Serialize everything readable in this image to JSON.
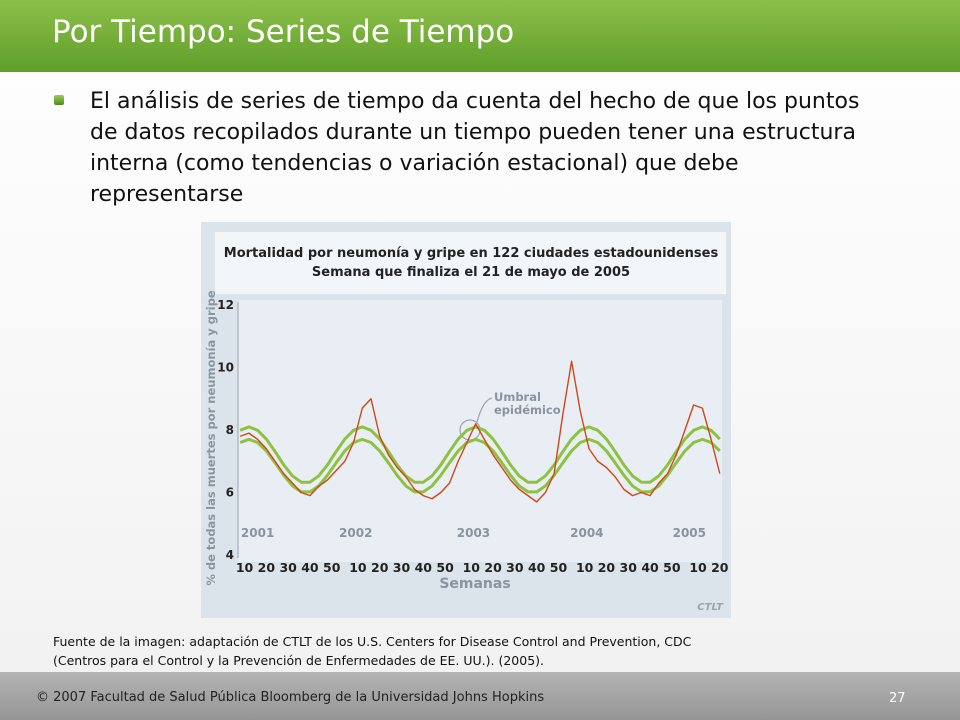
{
  "slide": {
    "title": "Por Tiempo: Series de Tiempo",
    "bullet": "El análisis de series de tiempo da cuenta del hecho de que los puntos de datos recopilados durante un tiempo pueden tener una estructura interna (como tendencias o variación estacional) que debe representarse",
    "source": [
      "Fuente de la imagen: adaptación de CTLT de los U.S. Centers for Disease Control and Prevention, CDC",
      "(Centros para el Control y la Prevención de Enfermedades de EE. UU.). (2005)."
    ],
    "footer": "© 2007 Facultad de Salud Pública Bloomberg de la Universidad Johns Hopkins",
    "page": "27"
  },
  "chart_data": {
    "type": "line",
    "title": "Mortalidad por neumonía y gripe en 122 ciudades estadounidenses",
    "subtitle": "Semana que finaliza el 21 de mayo de 2005",
    "y_label": "% de todas las muertes por neumonía y gripe",
    "x_label": "Semanas",
    "annotation": [
      "Umbral",
      "epidémico"
    ],
    "logo": "CTLT",
    "xlim": [
      7,
      229
    ],
    "ylim": [
      4,
      12
    ],
    "yticks": [
      4,
      6,
      8,
      10,
      12
    ],
    "xticks": [
      10,
      20,
      30,
      40,
      50,
      {
        "value": 62,
        "label": "10"
      },
      {
        "value": 72,
        "label": "20"
      },
      {
        "value": 82,
        "label": "30"
      },
      {
        "value": 92,
        "label": "40"
      },
      {
        "value": 102,
        "label": "50"
      },
      {
        "value": 114,
        "label": "10"
      },
      {
        "value": 124,
        "label": "20"
      },
      {
        "value": 134,
        "label": "30"
      },
      {
        "value": 144,
        "label": "40"
      },
      {
        "value": 154,
        "label": "50"
      },
      {
        "value": 166,
        "label": "10"
      },
      {
        "value": 176,
        "label": "20"
      },
      {
        "value": 186,
        "label": "30"
      },
      {
        "value": 196,
        "label": "40"
      },
      {
        "value": 206,
        "label": "50"
      },
      {
        "value": 218,
        "label": "10"
      },
      {
        "value": 228,
        "label": "20"
      }
    ],
    "year_labels": [
      {
        "value": 16,
        "label": "2001"
      },
      {
        "value": 61,
        "label": "2002"
      },
      {
        "value": 115,
        "label": "2003"
      },
      {
        "value": 167,
        "label": "2004"
      },
      {
        "value": 214,
        "label": "2005"
      }
    ],
    "grid": false,
    "x": [
      8,
      12,
      16,
      20,
      24,
      28,
      32,
      36,
      40,
      44,
      48,
      52,
      56,
      60,
      64,
      68,
      72,
      76,
      80,
      84,
      88,
      92,
      96,
      100,
      104,
      108,
      112,
      116,
      120,
      124,
      128,
      132,
      136,
      140,
      144,
      148,
      152,
      156,
      160,
      164,
      168,
      172,
      176,
      180,
      184,
      188,
      192,
      196,
      200,
      204,
      208,
      212,
      216,
      220,
      224,
      228
    ],
    "series": [
      {
        "color": "#8dc140",
        "width": 3,
        "values": [
          7.99,
          8.1,
          7.99,
          7.71,
          7.31,
          6.88,
          6.53,
          6.33,
          6.33,
          6.53,
          6.88,
          7.31,
          7.71,
          7.99,
          8.1,
          7.99,
          7.71,
          7.31,
          6.88,
          6.53,
          6.33,
          6.33,
          6.53,
          6.88,
          7.31,
          7.71,
          7.99,
          8.1,
          7.99,
          7.71,
          7.31,
          6.88,
          6.53,
          6.33,
          6.33,
          6.53,
          6.88,
          7.31,
          7.71,
          7.99,
          8.1,
          7.99,
          7.71,
          7.31,
          6.88,
          6.53,
          6.33,
          6.33,
          6.53,
          6.88,
          7.31,
          7.71,
          7.99,
          8.1,
          7.99,
          7.71
        ]
      },
      {
        "color": "#8dc140",
        "width": 3,
        "values": [
          7.6,
          7.7,
          7.6,
          7.33,
          6.95,
          6.55,
          6.21,
          6.02,
          6.02,
          6.21,
          6.55,
          6.95,
          7.33,
          7.6,
          7.7,
          7.6,
          7.33,
          6.95,
          6.55,
          6.21,
          6.02,
          6.02,
          6.21,
          6.55,
          6.95,
          7.33,
          7.6,
          7.7,
          7.6,
          7.33,
          6.95,
          6.55,
          6.21,
          6.02,
          6.02,
          6.21,
          6.55,
          6.95,
          7.33,
          7.6,
          7.7,
          7.6,
          7.33,
          6.95,
          6.55,
          6.21,
          6.02,
          6.02,
          6.21,
          6.55,
          6.95,
          7.33,
          7.6,
          7.7,
          7.6,
          7.33
        ]
      },
      {
        "color": "#d2461a",
        "width": 1.4,
        "values": [
          7.8,
          7.9,
          7.7,
          7.4,
          7.0,
          6.6,
          6.3,
          6.0,
          5.9,
          6.2,
          6.4,
          6.7,
          7.0,
          7.6,
          8.7,
          9.0,
          7.8,
          7.2,
          6.8,
          6.5,
          6.1,
          5.9,
          5.8,
          6.0,
          6.3,
          7.0,
          7.6,
          8.2,
          7.7,
          7.2,
          6.8,
          6.4,
          6.1,
          5.9,
          5.7,
          6.0,
          6.6,
          8.5,
          10.2,
          8.6,
          7.4,
          7.0,
          6.8,
          6.5,
          6.1,
          5.9,
          6.0,
          5.9,
          6.3,
          6.6,
          7.2,
          8.0,
          8.8,
          8.7,
          7.7,
          6.6
        ]
      }
    ]
  }
}
